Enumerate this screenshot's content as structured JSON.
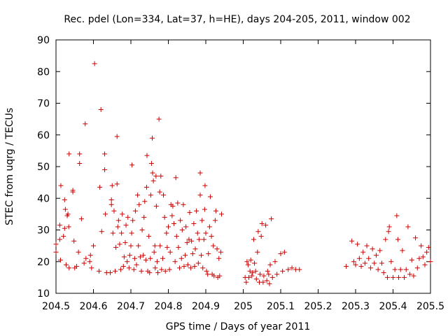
{
  "chart_data": {
    "type": "scatter",
    "title": "Rec. pdel (Lon=334, Lat=37, h=HE), days 204-205, 2011, window 002",
    "xlabel": "GPS time / Days of year 2011",
    "ylabel": "STEC from uqrg / TECUs",
    "xlim": [
      204.5,
      205.5
    ],
    "ylim": [
      10,
      90
    ],
    "xticks": [
      204.5,
      204.6,
      204.7,
      204.8,
      204.9,
      205,
      205.1,
      205.2,
      205.3,
      205.4,
      205.5
    ],
    "xtick_labels": [
      "204.5",
      "204.6",
      "204.7",
      "204.8",
      "204.9",
      "205",
      "205.1",
      "205.2",
      "205.3",
      "205.4",
      "205.5"
    ],
    "yticks": [
      10,
      20,
      30,
      40,
      50,
      60,
      70,
      80,
      90
    ],
    "ytick_labels": [
      "10",
      "20",
      "30",
      "40",
      "50",
      "60",
      "70",
      "80",
      "90"
    ],
    "grid": false,
    "marker": "+",
    "color": "#cc0000",
    "series": [
      {
        "name": "STEC",
        "points": [
          [
            204.5,
            23
          ],
          [
            204.5,
            25.5
          ],
          [
            204.51,
            27
          ],
          [
            204.512,
            20.5
          ],
          [
            204.51,
            31.5
          ],
          [
            204.513,
            44
          ],
          [
            204.52,
            28
          ],
          [
            204.523,
            30.5
          ],
          [
            204.525,
            36.5
          ],
          [
            204.523,
            39.5
          ],
          [
            204.527,
            19
          ],
          [
            204.53,
            34.5
          ],
          [
            204.532,
            35
          ],
          [
            204.535,
            18
          ],
          [
            204.535,
            54
          ],
          [
            204.534,
            31
          ],
          [
            204.545,
            42.5
          ],
          [
            204.545,
            42
          ],
          [
            204.548,
            26.5
          ],
          [
            204.55,
            18
          ],
          [
            204.555,
            18.5
          ],
          [
            204.56,
            23
          ],
          [
            204.563,
            51
          ],
          [
            204.563,
            54
          ],
          [
            204.568,
            33.5
          ],
          [
            204.575,
            19.5
          ],
          [
            204.58,
            21
          ],
          [
            204.578,
            63.5
          ],
          [
            204.59,
            20
          ],
          [
            204.592,
            22
          ],
          [
            204.595,
            18
          ],
          [
            204.6,
            25
          ],
          [
            204.603,
            82.5
          ],
          [
            204.615,
            17
          ],
          [
            204.62,
            68
          ],
          [
            204.617,
            43.5
          ],
          [
            204.622,
            29.5
          ],
          [
            204.63,
            49
          ],
          [
            204.63,
            54
          ],
          [
            204.632,
            35
          ],
          [
            204.635,
            16.5
          ],
          [
            204.645,
            16.5
          ],
          [
            204.648,
            38
          ],
          [
            204.648,
            39.5
          ],
          [
            204.65,
            44
          ],
          [
            204.652,
            29
          ],
          [
            204.655,
            36
          ],
          [
            204.658,
            17
          ],
          [
            204.66,
            24.5
          ],
          [
            204.663,
            59.5
          ],
          [
            204.663,
            44.5
          ],
          [
            204.665,
            31
          ],
          [
            204.667,
            33
          ],
          [
            204.67,
            25.5
          ],
          [
            204.673,
            17.5
          ],
          [
            204.675,
            29
          ],
          [
            204.677,
            35
          ],
          [
            204.68,
            18.5
          ],
          [
            204.682,
            21.5
          ],
          [
            204.685,
            26
          ],
          [
            204.687,
            31.5
          ],
          [
            204.69,
            20
          ],
          [
            204.692,
            34
          ],
          [
            204.695,
            18
          ],
          [
            204.697,
            22
          ],
          [
            204.7,
            25
          ],
          [
            204.702,
            29
          ],
          [
            204.703,
            50.5
          ],
          [
            204.705,
            33
          ],
          [
            204.708,
            17.5
          ],
          [
            204.71,
            21
          ],
          [
            204.712,
            36
          ],
          [
            204.715,
            19
          ],
          [
            204.718,
            41
          ],
          [
            204.72,
            25
          ],
          [
            204.722,
            38
          ],
          [
            204.725,
            21.5
          ],
          [
            204.728,
            17
          ],
          [
            204.73,
            30
          ],
          [
            204.733,
            22
          ],
          [
            204.735,
            34
          ],
          [
            204.737,
            39
          ],
          [
            204.74,
            20.5
          ],
          [
            204.742,
            43.5
          ],
          [
            204.743,
            53.5
          ],
          [
            204.745,
            17
          ],
          [
            204.748,
            28
          ],
          [
            204.75,
            16.5
          ],
          [
            204.752,
            21
          ],
          [
            204.753,
            41
          ],
          [
            204.755,
            51
          ],
          [
            204.757,
            59
          ],
          [
            204.758,
            48
          ],
          [
            204.76,
            45.5
          ],
          [
            204.762,
            23
          ],
          [
            204.764,
            25
          ],
          [
            204.765,
            18
          ],
          [
            204.767,
            47
          ],
          [
            204.768,
            37.5
          ],
          [
            204.77,
            20
          ],
          [
            204.772,
            16.5
          ],
          [
            204.775,
            65
          ],
          [
            204.777,
            42
          ],
          [
            204.778,
            25
          ],
          [
            204.78,
            47
          ],
          [
            204.782,
            17.5
          ],
          [
            204.785,
            21
          ],
          [
            204.787,
            41
          ],
          [
            204.79,
            34
          ],
          [
            204.792,
            17
          ],
          [
            204.795,
            29
          ],
          [
            204.797,
            24.5
          ],
          [
            204.8,
            31
          ],
          [
            204.803,
            17.5
          ],
          [
            204.805,
            23
          ],
          [
            204.807,
            38
          ],
          [
            204.81,
            34.5
          ],
          [
            204.812,
            37.5
          ],
          [
            204.815,
            32
          ],
          [
            204.818,
            20
          ],
          [
            204.82,
            46.5
          ],
          [
            204.822,
            28
          ],
          [
            204.825,
            38.5
          ],
          [
            204.827,
            24.5
          ],
          [
            204.83,
            18
          ],
          [
            204.832,
            33
          ],
          [
            204.835,
            21
          ],
          [
            204.837,
            30
          ],
          [
            204.84,
            38
          ],
          [
            204.842,
            18.5
          ],
          [
            204.845,
            22
          ],
          [
            204.847,
            31
          ],
          [
            204.85,
            26
          ],
          [
            204.852,
            19
          ],
          [
            204.855,
            27
          ],
          [
            204.857,
            35.5
          ],
          [
            204.86,
            18
          ],
          [
            204.862,
            26.5
          ],
          [
            204.865,
            22.5
          ],
          [
            204.868,
            32
          ],
          [
            204.87,
            18.5
          ],
          [
            204.872,
            24
          ],
          [
            204.875,
            36
          ],
          [
            204.878,
            29
          ],
          [
            204.88,
            19.5
          ],
          [
            204.882,
            27
          ],
          [
            204.885,
            48
          ],
          [
            204.885,
            41
          ],
          [
            204.888,
            22
          ],
          [
            204.89,
            33
          ],
          [
            204.892,
            18
          ],
          [
            204.895,
            27
          ],
          [
            204.897,
            36.5
          ],
          [
            204.898,
            44
          ],
          [
            204.9,
            29
          ],
          [
            204.902,
            17
          ],
          [
            204.905,
            16
          ],
          [
            204.907,
            22.5
          ],
          [
            204.91,
            31
          ],
          [
            204.912,
            40.5
          ],
          [
            204.915,
            28
          ],
          [
            204.917,
            16
          ],
          [
            204.92,
            25
          ],
          [
            204.922,
            15.5
          ],
          [
            204.925,
            33
          ],
          [
            204.927,
            36
          ],
          [
            204.93,
            24
          ],
          [
            204.932,
            15
          ],
          [
            204.935,
            21
          ],
          [
            204.937,
            15.5
          ],
          [
            204.94,
            23
          ],
          [
            204.942,
            35
          ],
          [
            205.005,
            15
          ],
          [
            205.008,
            13.5
          ],
          [
            205.01,
            20
          ],
          [
            205.013,
            19
          ],
          [
            205.015,
            15
          ],
          [
            205.018,
            17
          ],
          [
            205.02,
            20.5
          ],
          [
            205.023,
            15.5
          ],
          [
            205.025,
            16.5
          ],
          [
            205.028,
            27
          ],
          [
            205.03,
            19.5
          ],
          [
            205.033,
            17
          ],
          [
            205.035,
            14.5
          ],
          [
            205.038,
            23
          ],
          [
            205.04,
            29.5
          ],
          [
            205.043,
            13.5
          ],
          [
            205.045,
            16
          ],
          [
            205.048,
            28
          ],
          [
            205.05,
            32
          ],
          [
            205.053,
            13.5
          ],
          [
            205.055,
            15.5
          ],
          [
            205.06,
            31.5
          ],
          [
            205.063,
            14
          ],
          [
            205.065,
            17
          ],
          [
            205.068,
            16
          ],
          [
            205.07,
            13
          ],
          [
            205.072,
            19
          ],
          [
            205.075,
            33.5
          ],
          [
            205.078,
            15
          ],
          [
            205.085,
            20
          ],
          [
            205.09,
            16
          ],
          [
            205.1,
            22.5
          ],
          [
            205.105,
            17
          ],
          [
            205.11,
            23
          ],
          [
            205.12,
            17.5
          ],
          [
            205.13,
            18
          ],
          [
            205.14,
            17.5
          ],
          [
            205.15,
            17.5
          ],
          [
            205.275,
            18.5
          ],
          [
            205.29,
            26.5
          ],
          [
            205.295,
            20
          ],
          [
            205.3,
            19
          ],
          [
            205.305,
            25.5
          ],
          [
            205.31,
            21
          ],
          [
            205.315,
            18.5
          ],
          [
            205.32,
            23
          ],
          [
            205.325,
            19.5
          ],
          [
            205.33,
            25
          ],
          [
            205.335,
            21
          ],
          [
            205.34,
            18
          ],
          [
            205.345,
            24
          ],
          [
            205.35,
            19.5
          ],
          [
            205.355,
            22
          ],
          [
            205.36,
            17.5
          ],
          [
            205.365,
            23.5
          ],
          [
            205.37,
            19.5
          ],
          [
            205.375,
            16.5
          ],
          [
            205.38,
            27
          ],
          [
            205.385,
            15
          ],
          [
            205.388,
            29.5
          ],
          [
            205.39,
            31
          ],
          [
            205.395,
            20
          ],
          [
            205.4,
            15
          ],
          [
            205.405,
            17.5
          ],
          [
            205.41,
            34.5
          ],
          [
            205.413,
            27
          ],
          [
            205.415,
            15
          ],
          [
            205.42,
            17.5
          ],
          [
            205.425,
            23.5
          ],
          [
            205.43,
            15
          ],
          [
            205.435,
            17.5
          ],
          [
            205.44,
            31
          ],
          [
            205.445,
            16
          ],
          [
            205.45,
            20.5
          ],
          [
            205.455,
            15.5
          ],
          [
            205.46,
            27.5
          ],
          [
            205.465,
            18
          ],
          [
            205.47,
            21
          ],
          [
            205.475,
            25
          ],
          [
            205.48,
            21.5
          ],
          [
            205.485,
            19
          ],
          [
            205.49,
            23
          ],
          [
            205.495,
            24.5
          ],
          [
            205.5,
            20
          ]
        ]
      }
    ]
  }
}
